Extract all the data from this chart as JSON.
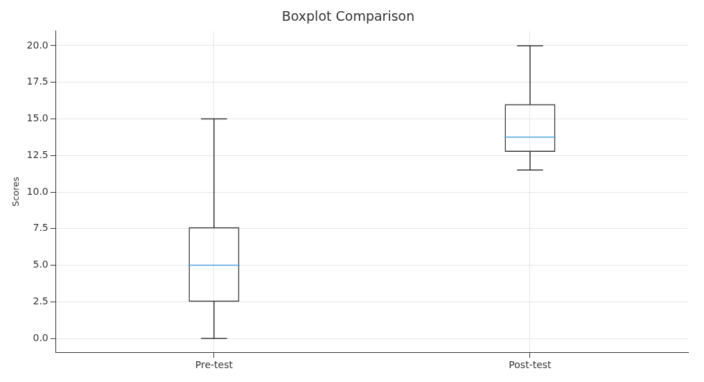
{
  "chart_data": {
    "type": "box",
    "title": "Boxplot Comparison",
    "ylabel": "Scores",
    "categories": [
      "Pre-test",
      "Post-test"
    ],
    "boxes": [
      {
        "low": 0,
        "q1": 2.5,
        "median": 5,
        "q3": 7.6,
        "high": 15
      },
      {
        "low": 11.5,
        "q1": 12.75,
        "median": 13.75,
        "q3": 16,
        "high": 20
      }
    ],
    "ylim": [
      -0.95,
      21
    ],
    "yticks": [
      {
        "value": 0,
        "label": "0.0"
      },
      2.5,
      {
        "value": 5,
        "label": "5.0"
      },
      7.5,
      {
        "value": 10,
        "label": "10.0"
      },
      12.5,
      {
        "value": 15,
        "label": "15.0"
      },
      17.5,
      {
        "value": 20,
        "label": "20.0"
      }
    ],
    "grid": true
  }
}
